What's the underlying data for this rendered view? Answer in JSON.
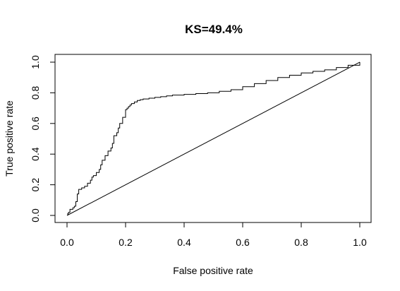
{
  "chart_data": {
    "type": "line",
    "title": "KS=49.4%",
    "xlabel": "False positive rate",
    "ylabel": "True positive rate",
    "xlim": [
      0,
      1
    ],
    "ylim": [
      0,
      1
    ],
    "xticks": [
      "0.0",
      "0.2",
      "0.4",
      "0.6",
      "0.8",
      "1.0"
    ],
    "yticks": [
      "0.0",
      "0.2",
      "0.4",
      "0.6",
      "0.8",
      "1.0"
    ],
    "grid": false,
    "legend": "none",
    "series": [
      {
        "x": [
          0,
          0.005,
          0.01,
          0.02,
          0.025,
          0.03,
          0.035,
          0.04,
          0.05,
          0.06,
          0.07,
          0.08,
          0.085,
          0.09,
          0.1,
          0.11,
          0.115,
          0.12,
          0.13,
          0.14,
          0.15,
          0.155,
          0.16,
          0.17,
          0.175,
          0.18,
          0.19,
          0.2,
          0.205,
          0.21,
          0.215,
          0.22,
          0.23,
          0.24,
          0.25,
          0.26,
          0.28,
          0.3,
          0.32,
          0.34,
          0.36,
          0.4,
          0.44,
          0.48,
          0.52,
          0.56,
          0.6,
          0.64,
          0.68,
          0.72,
          0.76,
          0.8,
          0.84,
          0.88,
          0.92,
          0.96,
          1.0
        ],
        "y": [
          0.01,
          0.02,
          0.04,
          0.05,
          0.06,
          0.09,
          0.14,
          0.17,
          0.18,
          0.19,
          0.21,
          0.23,
          0.25,
          0.26,
          0.28,
          0.3,
          0.33,
          0.36,
          0.39,
          0.42,
          0.44,
          0.47,
          0.52,
          0.54,
          0.57,
          0.6,
          0.64,
          0.69,
          0.7,
          0.71,
          0.72,
          0.73,
          0.74,
          0.75,
          0.755,
          0.76,
          0.765,
          0.77,
          0.775,
          0.78,
          0.785,
          0.79,
          0.795,
          0.8,
          0.81,
          0.82,
          0.84,
          0.86,
          0.88,
          0.9,
          0.915,
          0.93,
          0.94,
          0.95,
          0.965,
          0.98,
          1.0
        ]
      },
      {
        "x": [
          0,
          1
        ],
        "y": [
          0,
          1
        ]
      }
    ]
  }
}
